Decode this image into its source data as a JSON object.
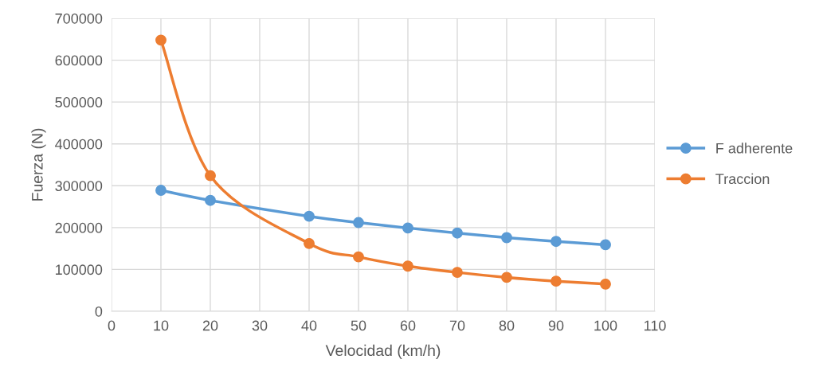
{
  "chart_data": {
    "type": "line",
    "xlabel": "Velocidad (km/h)",
    "ylabel": "Fuerza (N)",
    "x": [
      10,
      20,
      40,
      50,
      60,
      70,
      80,
      90,
      100
    ],
    "series": [
      {
        "name": "F adherente",
        "color": "#5b9bd5",
        "values": [
          289000,
          265000,
          227000,
          212000,
          199000,
          187000,
          176000,
          167000,
          159000
        ]
      },
      {
        "name": "Traccion",
        "color": "#ed7d31",
        "values": [
          648000,
          324000,
          162000,
          130000,
          108000,
          93000,
          81000,
          72000,
          65000
        ]
      }
    ],
    "xlim": [
      0,
      110
    ],
    "xticks": [
      0,
      10,
      20,
      30,
      40,
      50,
      60,
      70,
      80,
      90,
      100,
      110
    ],
    "ylim": [
      0,
      700000
    ],
    "yticks": [
      0,
      100000,
      200000,
      300000,
      400000,
      500000,
      600000,
      700000
    ],
    "grid": true,
    "legend": "right",
    "marker": "circle",
    "line_style": "solid"
  }
}
